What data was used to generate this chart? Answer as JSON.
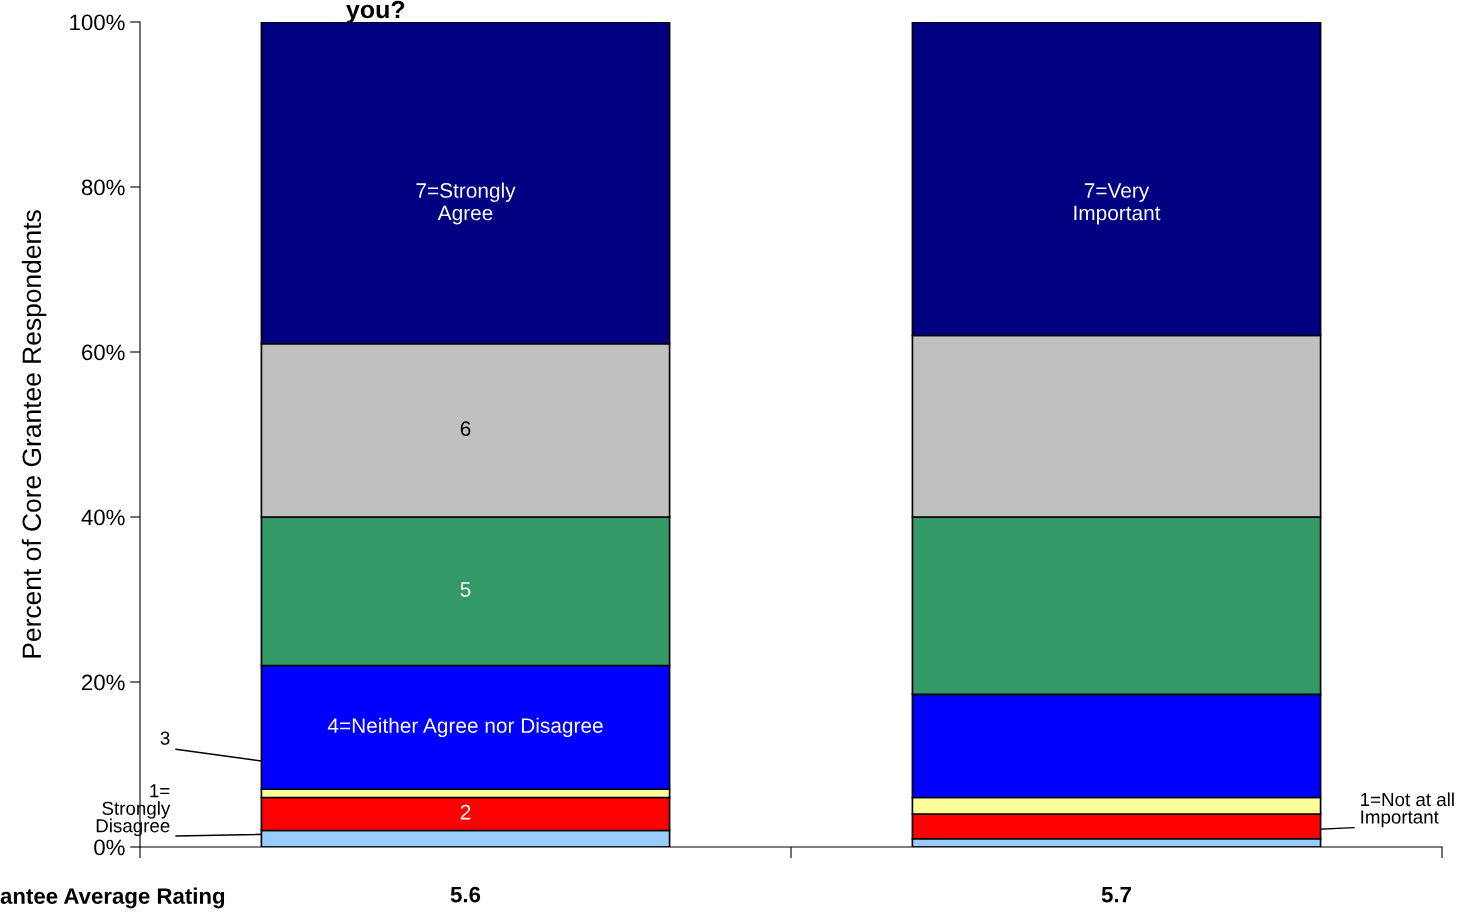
{
  "chart_data": {
    "type": "bar",
    "stacked": true,
    "title": "you?",
    "ylabel": "Percent of Core Grantee Respondents",
    "categories": [
      "5.6",
      "5.7"
    ],
    "series": [
      {
        "color": "#99ccff",
        "values": [
          2,
          1
        ]
      },
      {
        "color": "#ff0000",
        "values": [
          4,
          3
        ]
      },
      {
        "color": "#ffff99",
        "values": [
          1,
          2
        ]
      },
      {
        "color": "#0000ff",
        "values": [
          15,
          12.5
        ]
      },
      {
        "color": "#339966",
        "values": [
          18,
          21.5
        ]
      },
      {
        "color": "#c0c0c0",
        "values": [
          21,
          22
        ]
      },
      {
        "color": "#000080",
        "values": [
          39,
          38
        ]
      }
    ],
    "ylim": [
      0,
      100
    ],
    "yticks": [
      {
        "value": 0,
        "label": "0%"
      },
      {
        "value": 20,
        "label": "20%"
      },
      {
        "value": 40,
        "label": "40%"
      },
      {
        "value": 60,
        "label": "60%"
      },
      {
        "value": 80,
        "label": "80%"
      },
      {
        "value": 100,
        "label": "100%"
      }
    ],
    "grid": false,
    "legend": false,
    "annotations": [
      "7=Strongly\nAgree",
      "6",
      "5",
      "4=Neither Agree nor Disagree",
      "2",
      {
        "text": "3",
        "x": "5.6",
        "y": 7
      },
      {
        "text": "1=\nStrongly\nDisagree",
        "x": "5.6",
        "y": 2
      },
      "7=Very\nImportant",
      {
        "text": "1=Not at all\nImportant",
        "x": "5.7",
        "y": 1
      },
      "antee Average Rating"
    ]
  }
}
